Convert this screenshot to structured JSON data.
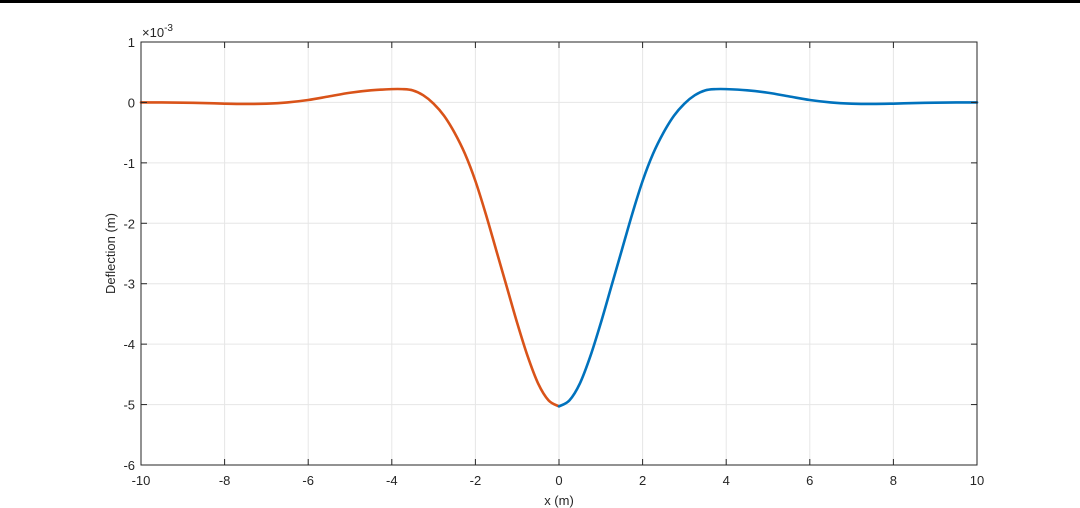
{
  "chart_data": {
    "type": "line",
    "xlabel": "x (m)",
    "ylabel": "Deflection (m)",
    "y_exponent_label": "×10",
    "y_exponent_power": "-3",
    "xlim": [
      -10,
      10
    ],
    "ylim": [
      -6,
      1
    ],
    "x_ticks": [
      "-10",
      "-8",
      "-6",
      "-4",
      "-2",
      "0",
      "2",
      "4",
      "6",
      "8",
      "10"
    ],
    "y_ticks": [
      "1",
      "0",
      "-1",
      "-2",
      "-3",
      "-4",
      "-5",
      "-6"
    ],
    "grid": true,
    "box": true,
    "y_scale_note": "values in units of 1e-3 m",
    "series": [
      {
        "color": "#d95319",
        "x": [
          -10,
          -9.5,
          -9,
          -8.5,
          -8,
          -7.5,
          -7,
          -6.5,
          -6,
          -5.5,
          -5,
          -4.5,
          -4,
          -3.75,
          -3.5,
          -3.25,
          -3,
          -2.75,
          -2.5,
          -2.25,
          -2,
          -1.75,
          -1.5,
          -1.25,
          -1,
          -0.75,
          -0.5,
          -0.25,
          0
        ],
        "y": [
          0,
          0,
          -0.005,
          -0.01,
          -0.02,
          -0.025,
          -0.02,
          0,
          0.04,
          0.1,
          0.16,
          0.2,
          0.22,
          0.22,
          0.2,
          0.12,
          -0.02,
          -0.22,
          -0.5,
          -0.85,
          -1.3,
          -1.85,
          -2.45,
          -3.05,
          -3.65,
          -4.2,
          -4.65,
          -4.93,
          -5.03
        ]
      },
      {
        "color": "#0072bd",
        "x": [
          0,
          0.25,
          0.5,
          0.75,
          1,
          1.25,
          1.5,
          1.75,
          2,
          2.25,
          2.5,
          2.75,
          3,
          3.25,
          3.5,
          3.75,
          4,
          4.5,
          5,
          5.5,
          6,
          6.5,
          7,
          7.5,
          8,
          8.5,
          9,
          9.5,
          10
        ],
        "y": [
          -5.03,
          -4.93,
          -4.65,
          -4.2,
          -3.65,
          -3.05,
          -2.45,
          -1.85,
          -1.3,
          -0.85,
          -0.5,
          -0.22,
          -0.02,
          0.12,
          0.2,
          0.22,
          0.22,
          0.2,
          0.16,
          0.1,
          0.04,
          0,
          -0.02,
          -0.025,
          -0.02,
          -0.01,
          -0.005,
          0,
          0
        ]
      }
    ]
  }
}
